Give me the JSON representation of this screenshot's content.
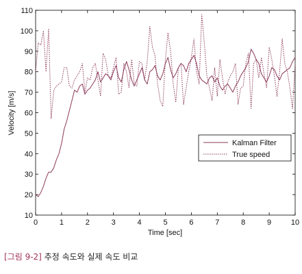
{
  "chart_data": {
    "type": "line",
    "xlabel": "Time [sec]",
    "ylabel": "Velocity [m/s]",
    "xlim": [
      0,
      10
    ],
    "ylim": [
      10,
      110
    ],
    "xticks": [
      "0",
      "1",
      "2",
      "3",
      "4",
      "5",
      "6",
      "7",
      "8",
      "9",
      "10"
    ],
    "yticks": [
      "10",
      "20",
      "30",
      "40",
      "50",
      "60",
      "70",
      "80",
      "90",
      "100",
      "110"
    ],
    "grid": false,
    "legend_position": "center-right",
    "series": [
      {
        "name": "Kalman Filter",
        "style": "solid",
        "color": "#8b3a5a",
        "x": [
          0,
          0.1,
          0.2,
          0.3,
          0.4,
          0.5,
          0.6,
          0.7,
          0.8,
          0.9,
          1.0,
          1.1,
          1.2,
          1.3,
          1.4,
          1.5,
          1.6,
          1.7,
          1.8,
          1.9,
          2.0,
          2.1,
          2.2,
          2.3,
          2.4,
          2.5,
          2.6,
          2.7,
          2.8,
          2.9,
          3.0,
          3.1,
          3.2,
          3.3,
          3.4,
          3.5,
          3.6,
          3.7,
          3.8,
          3.9,
          4.0,
          4.1,
          4.2,
          4.3,
          4.4,
          4.5,
          4.6,
          4.7,
          4.8,
          4.9,
          5.0,
          5.1,
          5.2,
          5.3,
          5.4,
          5.5,
          5.6,
          5.7,
          5.8,
          5.9,
          6.0,
          6.1,
          6.2,
          6.3,
          6.4,
          6.5,
          6.6,
          6.7,
          6.8,
          6.9,
          7.0,
          7.1,
          7.2,
          7.3,
          7.4,
          7.5,
          7.6,
          7.7,
          7.8,
          7.9,
          8.0,
          8.1,
          8.2,
          8.3,
          8.4,
          8.5,
          8.6,
          8.7,
          8.8,
          8.9,
          9.0,
          9.1,
          9.2,
          9.3,
          9.4,
          9.5,
          9.6,
          9.7,
          9.8,
          9.9,
          10.0
        ],
        "y": [
          20,
          19,
          21,
          24,
          28,
          31,
          31,
          33,
          37,
          40,
          45,
          52,
          56,
          61,
          66,
          71,
          70,
          73,
          74,
          69,
          71,
          72,
          74,
          76,
          80,
          75,
          77,
          79,
          78,
          76,
          80,
          83,
          77,
          75,
          81,
          85,
          81,
          76,
          73,
          76,
          79,
          82,
          76,
          74,
          80,
          81,
          83,
          78,
          76,
          79,
          84,
          87,
          81,
          77,
          79,
          82,
          84,
          83,
          80,
          84,
          86,
          88,
          84,
          78,
          76,
          75,
          74,
          77,
          78,
          75,
          77,
          73,
          71,
          73,
          74,
          72,
          70,
          73,
          75,
          78,
          80,
          82,
          85,
          91,
          89,
          86,
          84,
          79,
          77,
          75,
          78,
          82,
          81,
          78,
          76,
          79,
          80,
          81,
          82,
          85,
          87
        ]
      },
      {
        "name": "True speed",
        "style": "dotted",
        "color": "#8b3a5a",
        "x": [
          0,
          0.1,
          0.2,
          0.3,
          0.4,
          0.5,
          0.6,
          0.7,
          0.8,
          0.9,
          1.0,
          1.1,
          1.2,
          1.3,
          1.4,
          1.5,
          1.6,
          1.7,
          1.8,
          1.9,
          2.0,
          2.1,
          2.2,
          2.3,
          2.4,
          2.5,
          2.6,
          2.7,
          2.8,
          2.9,
          3.0,
          3.1,
          3.2,
          3.3,
          3.4,
          3.5,
          3.6,
          3.7,
          3.8,
          3.9,
          4.0,
          4.1,
          4.2,
          4.3,
          4.4,
          4.5,
          4.6,
          4.7,
          4.8,
          4.9,
          5.0,
          5.1,
          5.2,
          5.3,
          5.4,
          5.5,
          5.6,
          5.7,
          5.8,
          5.9,
          6.0,
          6.1,
          6.2,
          6.3,
          6.4,
          6.5,
          6.6,
          6.7,
          6.8,
          6.9,
          7.0,
          7.1,
          7.2,
          7.3,
          7.4,
          7.5,
          7.6,
          7.7,
          7.8,
          7.9,
          8.0,
          8.1,
          8.2,
          8.3,
          8.4,
          8.5,
          8.6,
          8.7,
          8.8,
          8.9,
          9.0,
          9.1,
          9.2,
          9.3,
          9.4,
          9.5,
          9.6,
          9.7,
          9.8,
          9.9,
          10.0
        ],
        "y": [
          80,
          94,
          93,
          100,
          80,
          101,
          57,
          71,
          73,
          74,
          75,
          82,
          82,
          73,
          72,
          76,
          78,
          80,
          84,
          70,
          77,
          76,
          82,
          84,
          76,
          68,
          89,
          86,
          78,
          77,
          82,
          87,
          69,
          70,
          84,
          80,
          72,
          86,
          74,
          73,
          85,
          84,
          76,
          85,
          102,
          92,
          88,
          74,
          66,
          63,
          86,
          99,
          90,
          74,
          65,
          82,
          84,
          64,
          72,
          80,
          87,
          96,
          80,
          74,
          108,
          94,
          78,
          72,
          66,
          82,
          68,
          86,
          77,
          69,
          75,
          78,
          80,
          84,
          64,
          72,
          73,
          84,
          89,
          62,
          84,
          86,
          77,
          87,
          79,
          72,
          92,
          86,
          78,
          68,
          80,
          96,
          84,
          80,
          72,
          62,
          84
        ]
      }
    ]
  },
  "caption": {
    "label": "[그림 9-2]",
    "text": "추정 속도와 실제 속도 비교"
  }
}
